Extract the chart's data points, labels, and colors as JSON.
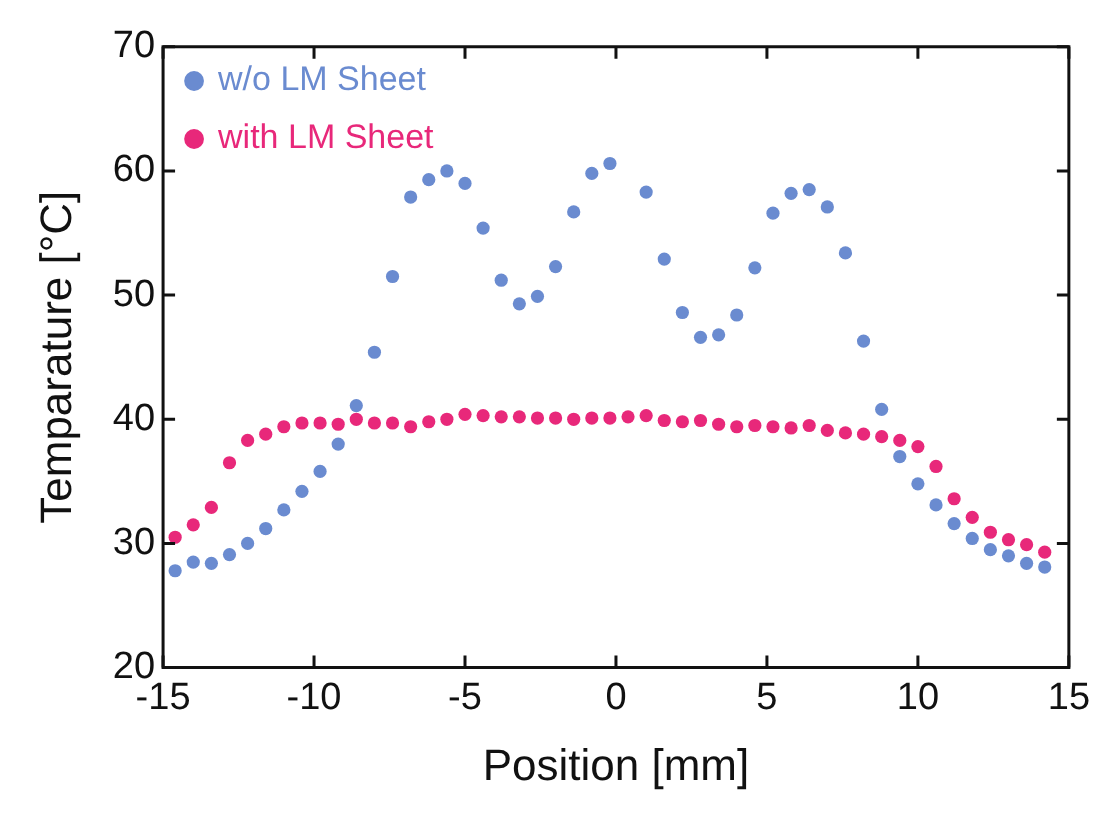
{
  "chart_data": {
    "type": "scatter",
    "xlabel": "Position [mm]",
    "ylabel": "Temparature [°C]",
    "xlim": [
      -15,
      15
    ],
    "xticks": [
      -15,
      -10,
      -5,
      0,
      5,
      10,
      15
    ],
    "ylim": [
      20,
      70
    ],
    "yticks": [
      20,
      30,
      40,
      50,
      60,
      70
    ],
    "grid": false,
    "legend": "top left",
    "marker": "circle",
    "series": [
      {
        "name": "w/o LM Sheet",
        "color": "#6a8bd0",
        "x": [
          -14.6,
          -14.0,
          -13.4,
          -12.8,
          -12.2,
          -11.6,
          -11.0,
          -10.4,
          -9.8,
          -9.2,
          -8.6,
          -8.0,
          -7.4,
          -6.8,
          -6.2,
          -5.6,
          -5.0,
          -4.4,
          -3.8,
          -3.2,
          -2.6,
          -2.0,
          -1.4,
          -0.8,
          -0.2,
          1.0,
          1.6,
          2.2,
          2.8,
          3.4,
          4.0,
          4.6,
          5.2,
          5.8,
          6.4,
          7.0,
          7.6,
          8.2,
          8.8,
          9.4,
          10.0,
          10.6,
          11.2,
          11.8,
          12.4,
          13.0,
          13.6,
          14.2
        ],
        "values": [
          27.8,
          28.5,
          28.4,
          29.1,
          30.0,
          31.2,
          32.7,
          34.2,
          35.8,
          38.0,
          41.1,
          45.4,
          51.5,
          57.9,
          59.3,
          60.0,
          59.0,
          55.4,
          51.2,
          49.3,
          49.9,
          52.3,
          56.7,
          59.8,
          60.6,
          58.3,
          52.9,
          48.6,
          46.6,
          46.8,
          48.4,
          52.2,
          56.6,
          58.2,
          58.5,
          57.1,
          53.4,
          46.3,
          40.8,
          37.0,
          34.8,
          33.1,
          31.6,
          30.4,
          29.5,
          29.0,
          28.4,
          28.1
        ]
      },
      {
        "name": "with LM Sheet",
        "color": "#e8287a",
        "x": [
          -14.6,
          -14.0,
          -13.4,
          -12.8,
          -12.2,
          -11.6,
          -11.0,
          -10.4,
          -9.8,
          -9.2,
          -8.6,
          -8.0,
          -7.4,
          -6.8,
          -6.2,
          -5.6,
          -5.0,
          -4.4,
          -3.8,
          -3.2,
          -2.6,
          -2.0,
          -1.4,
          -0.8,
          -0.2,
          0.4,
          1.0,
          1.6,
          2.2,
          2.8,
          3.4,
          4.0,
          4.6,
          5.2,
          5.8,
          6.4,
          7.0,
          7.6,
          8.2,
          8.8,
          9.4,
          10.0,
          10.6,
          11.2,
          11.8,
          12.4,
          13.0,
          13.6,
          14.2
        ],
        "values": [
          30.5,
          31.5,
          32.9,
          36.5,
          38.3,
          38.8,
          39.4,
          39.7,
          39.7,
          39.6,
          40.0,
          39.7,
          39.7,
          39.4,
          39.8,
          40.0,
          40.4,
          40.3,
          40.2,
          40.2,
          40.1,
          40.1,
          40.0,
          40.1,
          40.1,
          40.2,
          40.3,
          39.9,
          39.8,
          39.9,
          39.6,
          39.4,
          39.5,
          39.4,
          39.3,
          39.5,
          39.1,
          38.9,
          38.8,
          38.6,
          38.3,
          37.8,
          36.2,
          33.6,
          32.1,
          30.9,
          30.3,
          29.9,
          29.3
        ]
      }
    ]
  }
}
